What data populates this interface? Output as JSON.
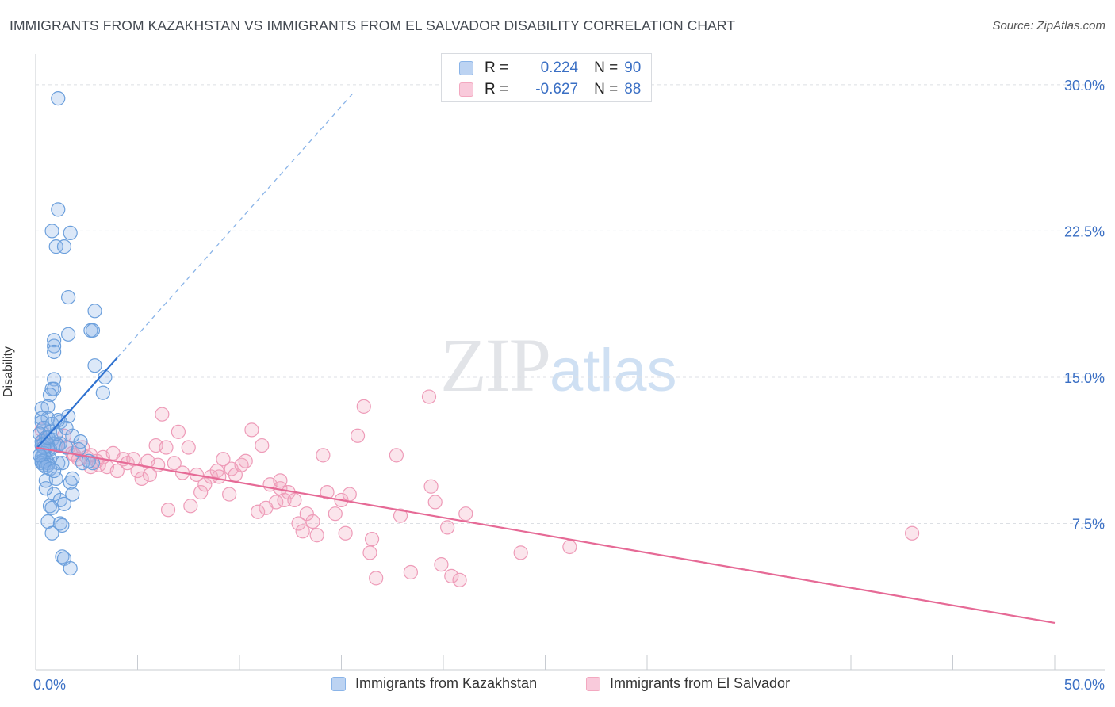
{
  "header": {
    "title": "IMMIGRANTS FROM KAZAKHSTAN VS IMMIGRANTS FROM EL SALVADOR DISABILITY CORRELATION CHART",
    "source": "Source: ZipAtlas.com"
  },
  "watermark": {
    "zip": "ZIP",
    "atlas": "atlas"
  },
  "legend": {
    "rows": [
      {
        "r_label": "R =",
        "r_value": "0.224",
        "n_label": "N =",
        "n_value": "90",
        "color": "#8ab4e8"
      },
      {
        "r_label": "R =",
        "r_value": "-0.627",
        "n_label": "N =",
        "n_value": "88",
        "color": "#f3a8c0"
      }
    ]
  },
  "bottom_legend": [
    "Immigrants from Kazakhstan",
    "Immigrants from El Salvador"
  ],
  "chart_data": {
    "type": "scatter",
    "title": "IMMIGRANTS FROM KAZAKHSTAN VS IMMIGRANTS FROM EL SALVADOR DISABILITY CORRELATION CHART",
    "xlabel": "",
    "ylabel": "Disability",
    "xlim": [
      0,
      50
    ],
    "ylim": [
      0,
      31.5
    ],
    "x_tick_labels": [
      "0.0%",
      "50.0%"
    ],
    "y_ticks": [
      7.5,
      15.0,
      22.5,
      30.0
    ],
    "y_tick_labels": [
      "7.5%",
      "15.0%",
      "22.5%",
      "30.0%"
    ],
    "grid": true,
    "series": [
      {
        "name": "Immigrants from Kazakhstan",
        "color": "#6b9fdc",
        "trend": {
          "x": [
            0,
            4.0
          ],
          "y": [
            11.3,
            16.0
          ],
          "extended_to": [
            15.6,
            29.6
          ]
        },
        "points": [
          [
            1.1,
            29.3
          ],
          [
            1.1,
            23.6
          ],
          [
            0.8,
            22.5
          ],
          [
            1.7,
            22.4
          ],
          [
            1.0,
            21.7
          ],
          [
            1.4,
            21.7
          ],
          [
            1.6,
            19.1
          ],
          [
            2.9,
            18.4
          ],
          [
            2.7,
            17.4
          ],
          [
            2.8,
            17.4
          ],
          [
            1.6,
            17.2
          ],
          [
            0.9,
            16.9
          ],
          [
            0.9,
            16.6
          ],
          [
            0.9,
            16.3
          ],
          [
            2.9,
            15.6
          ],
          [
            3.4,
            15.0
          ],
          [
            0.9,
            14.9
          ],
          [
            0.8,
            14.4
          ],
          [
            0.9,
            14.4
          ],
          [
            3.3,
            14.2
          ],
          [
            0.7,
            14.1
          ],
          [
            0.6,
            13.5
          ],
          [
            0.3,
            13.4
          ],
          [
            1.6,
            13.0
          ],
          [
            0.6,
            12.9
          ],
          [
            0.3,
            12.9
          ],
          [
            0.3,
            12.7
          ],
          [
            1.2,
            12.7
          ],
          [
            0.8,
            12.6
          ],
          [
            0.4,
            12.4
          ],
          [
            0.7,
            12.2
          ],
          [
            0.2,
            12.1
          ],
          [
            1.8,
            12.0
          ],
          [
            0.5,
            11.9
          ],
          [
            0.8,
            11.8
          ],
          [
            2.2,
            11.7
          ],
          [
            0.3,
            11.7
          ],
          [
            0.9,
            11.6
          ],
          [
            0.4,
            11.6
          ],
          [
            1.2,
            11.6
          ],
          [
            0.6,
            11.5
          ],
          [
            0.3,
            11.5
          ],
          [
            1.1,
            11.5
          ],
          [
            1.5,
            11.4
          ],
          [
            0.7,
            11.3
          ],
          [
            0.6,
            11.3
          ],
          [
            0.4,
            11.1
          ],
          [
            0.4,
            11.0
          ],
          [
            0.3,
            10.9
          ],
          [
            0.7,
            10.8
          ],
          [
            0.5,
            10.8
          ],
          [
            0.3,
            10.7
          ],
          [
            0.4,
            10.7
          ],
          [
            0.6,
            10.6
          ],
          [
            0.3,
            10.6
          ],
          [
            1.1,
            10.6
          ],
          [
            0.6,
            10.5
          ],
          [
            0.4,
            10.5
          ],
          [
            0.5,
            10.4
          ],
          [
            0.7,
            10.3
          ],
          [
            1.3,
            10.6
          ],
          [
            2.3,
            10.6
          ],
          [
            2.8,
            10.6
          ],
          [
            1.8,
            9.8
          ],
          [
            0.5,
            9.7
          ],
          [
            1.0,
            9.8
          ],
          [
            1.7,
            9.6
          ],
          [
            0.9,
            9.0
          ],
          [
            1.2,
            8.7
          ],
          [
            1.4,
            8.5
          ],
          [
            0.7,
            8.4
          ],
          [
            0.8,
            8.3
          ],
          [
            0.6,
            7.6
          ],
          [
            1.2,
            7.5
          ],
          [
            1.3,
            7.4
          ],
          [
            0.8,
            7.0
          ],
          [
            1.3,
            5.8
          ],
          [
            1.4,
            5.7
          ],
          [
            1.7,
            5.2
          ],
          [
            1.8,
            9.0
          ],
          [
            0.4,
            11.4
          ],
          [
            0.6,
            11.9
          ],
          [
            0.2,
            11.0
          ],
          [
            1.0,
            12.1
          ],
          [
            2.1,
            11.3
          ],
          [
            1.5,
            12.4
          ],
          [
            0.9,
            10.2
          ],
          [
            0.5,
            9.3
          ],
          [
            1.1,
            12.8
          ],
          [
            2.6,
            10.7
          ]
        ]
      },
      {
        "name": "Immigrants from El Salvador",
        "color": "#ee8fb0",
        "trend": {
          "x": [
            0,
            50
          ],
          "y": [
            11.4,
            2.4
          ]
        },
        "points": [
          [
            0.3,
            12.3
          ],
          [
            0.4,
            11.8
          ],
          [
            1.1,
            11.5
          ],
          [
            1.6,
            11.4
          ],
          [
            1.8,
            11.1
          ],
          [
            1.9,
            11.0
          ],
          [
            2.1,
            10.8
          ],
          [
            2.3,
            11.4
          ],
          [
            2.5,
            10.9
          ],
          [
            2.7,
            10.4
          ],
          [
            3.0,
            10.7
          ],
          [
            3.1,
            10.5
          ],
          [
            3.5,
            10.4
          ],
          [
            3.8,
            11.1
          ],
          [
            4.0,
            10.2
          ],
          [
            4.3,
            10.8
          ],
          [
            4.5,
            10.6
          ],
          [
            4.8,
            10.8
          ],
          [
            5.0,
            10.2
          ],
          [
            5.2,
            9.8
          ],
          [
            5.5,
            10.7
          ],
          [
            5.6,
            10.0
          ],
          [
            5.9,
            11.5
          ],
          [
            6.2,
            13.1
          ],
          [
            6.4,
            11.4
          ],
          [
            6.5,
            8.2
          ],
          [
            6.8,
            10.6
          ],
          [
            7.0,
            12.2
          ],
          [
            7.2,
            10.1
          ],
          [
            7.5,
            11.4
          ],
          [
            7.6,
            8.4
          ],
          [
            7.9,
            10.0
          ],
          [
            8.1,
            9.1
          ],
          [
            8.3,
            9.5
          ],
          [
            8.6,
            9.9
          ],
          [
            8.9,
            10.2
          ],
          [
            9.0,
            9.9
          ],
          [
            9.2,
            10.8
          ],
          [
            9.5,
            9.0
          ],
          [
            9.6,
            10.3
          ],
          [
            9.8,
            10.0
          ],
          [
            10.1,
            10.5
          ],
          [
            10.3,
            10.7
          ],
          [
            10.6,
            12.3
          ],
          [
            10.9,
            8.1
          ],
          [
            11.1,
            11.5
          ],
          [
            11.3,
            8.3
          ],
          [
            11.5,
            9.5
          ],
          [
            11.8,
            8.6
          ],
          [
            12.0,
            9.3
          ],
          [
            12.2,
            8.7
          ],
          [
            12.4,
            9.1
          ],
          [
            12.7,
            8.7
          ],
          [
            12.9,
            7.5
          ],
          [
            13.1,
            7.1
          ],
          [
            13.3,
            8.0
          ],
          [
            13.6,
            7.6
          ],
          [
            13.8,
            6.9
          ],
          [
            14.1,
            11.0
          ],
          [
            14.3,
            9.1
          ],
          [
            14.7,
            8.0
          ],
          [
            15.0,
            8.7
          ],
          [
            15.2,
            7.0
          ],
          [
            15.4,
            9.0
          ],
          [
            15.8,
            12.0
          ],
          [
            16.1,
            13.5
          ],
          [
            16.4,
            6.0
          ],
          [
            16.5,
            6.7
          ],
          [
            16.7,
            4.7
          ],
          [
            17.7,
            11.0
          ],
          [
            17.9,
            7.9
          ],
          [
            18.4,
            5.0
          ],
          [
            19.3,
            14.0
          ],
          [
            19.4,
            9.4
          ],
          [
            19.6,
            8.6
          ],
          [
            19.9,
            5.4
          ],
          [
            20.2,
            7.3
          ],
          [
            20.4,
            4.8
          ],
          [
            20.8,
            4.6
          ],
          [
            21.1,
            8.0
          ],
          [
            23.8,
            6.0
          ],
          [
            26.2,
            6.3
          ],
          [
            43.0,
            7.0
          ],
          [
            1.4,
            12.0
          ],
          [
            2.7,
            11.0
          ],
          [
            12.0,
            9.7
          ],
          [
            6.0,
            10.5
          ],
          [
            3.3,
            10.9
          ]
        ]
      }
    ]
  }
}
